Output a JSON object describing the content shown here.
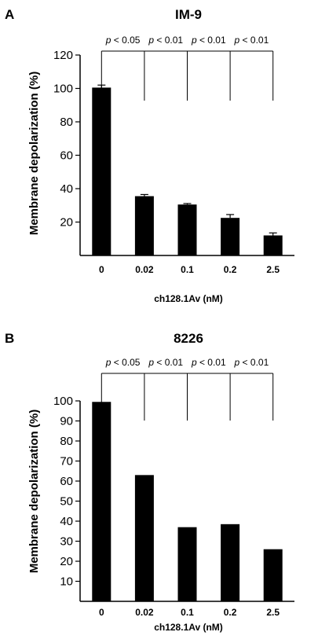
{
  "chart_data": [
    {
      "type": "bar",
      "panel_label": "A",
      "title": "IM-9",
      "xlabel": "ch128.1Av (nM)",
      "ylabel": "Membrane depolarization (%)",
      "categories": [
        "0",
        "0.02",
        "0.1",
        "0.2",
        "2.5"
      ],
      "values": [
        100.5,
        35.5,
        30.5,
        22.5,
        12
      ],
      "errors": [
        1.5,
        1.0,
        0.6,
        2.0,
        1.5
      ],
      "ylim": [
        0,
        120
      ],
      "yticks": [
        "20",
        "40",
        "60",
        "80",
        "100",
        "120"
      ],
      "comparisons": [
        {
          "p_symbol": "p",
          "p_rest": " < 0.05"
        },
        {
          "p_symbol": "p",
          "p_rest": " < 0.01"
        },
        {
          "p_symbol": "p",
          "p_rest": " < 0.01"
        },
        {
          "p_symbol": "p",
          "p_rest": " < 0.01"
        }
      ],
      "bar_color": "#000000"
    },
    {
      "type": "bar",
      "panel_label": "B",
      "title": "8226",
      "xlabel": "ch128.1Av (nM)",
      "ylabel": "Membrane depolarization (%)",
      "categories": [
        "0",
        "0.02",
        "0.1",
        "0.2",
        "2.5"
      ],
      "values": [
        99.5,
        63,
        37,
        38.5,
        26
      ],
      "ylim": [
        0,
        100
      ],
      "yticks": [
        "10",
        "20",
        "30",
        "40",
        "50",
        "60",
        "70",
        "80",
        "90",
        "100"
      ],
      "comparisons": [
        {
          "p_symbol": "p",
          "p_rest": " < 0.05"
        },
        {
          "p_symbol": "p",
          "p_rest": " < 0.01"
        },
        {
          "p_symbol": "p",
          "p_rest": " < 0.01"
        },
        {
          "p_symbol": "p",
          "p_rest": " < 0.01"
        }
      ],
      "bar_color": "#000000"
    }
  ]
}
